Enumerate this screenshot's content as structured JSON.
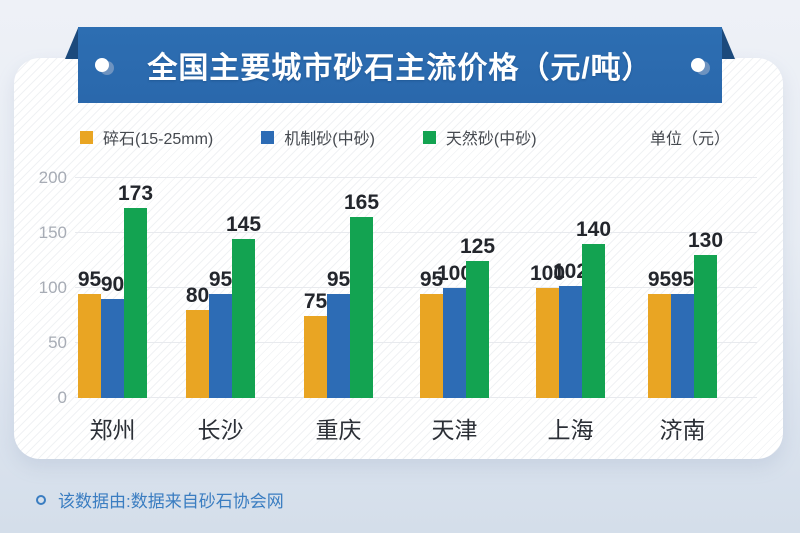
{
  "banner": {
    "title": "全国主要城市砂石主流价格（元/吨）"
  },
  "legend": [
    {
      "label": "碎石(15-25mm)",
      "color": "#e9a523"
    },
    {
      "label": "机制砂(中砂)",
      "color": "#2d6cb5"
    },
    {
      "label": "天然砂(中砂)",
      "color": "#13a351"
    }
  ],
  "unit_label": "单位（元）",
  "chart_data": {
    "type": "bar",
    "title": "全国主要城市砂石主流价格（元/吨）",
    "categories": [
      "郑州",
      "长沙",
      "重庆",
      "天津",
      "上海",
      "济南"
    ],
    "series": [
      {
        "name": "碎石(15-25mm)",
        "color": "#e9a523",
        "values": [
          95,
          80,
          75,
          95,
          100,
          95
        ]
      },
      {
        "name": "机制砂(中砂)",
        "color": "#2d6cb5",
        "values": [
          90,
          95,
          95,
          100,
          102,
          95
        ]
      },
      {
        "name": "天然砂(中砂)",
        "color": "#13a351",
        "values": [
          173,
          145,
          165,
          125,
          140,
          130
        ]
      }
    ],
    "xlabel": "",
    "ylabel": "",
    "ylim": [
      0,
      200
    ],
    "yticks": [
      0,
      50,
      100,
      150,
      200
    ],
    "grid": true,
    "legend_position": "top",
    "data_labels": true
  },
  "footer": {
    "note": "该数据由:数据来自砂石协会网"
  }
}
